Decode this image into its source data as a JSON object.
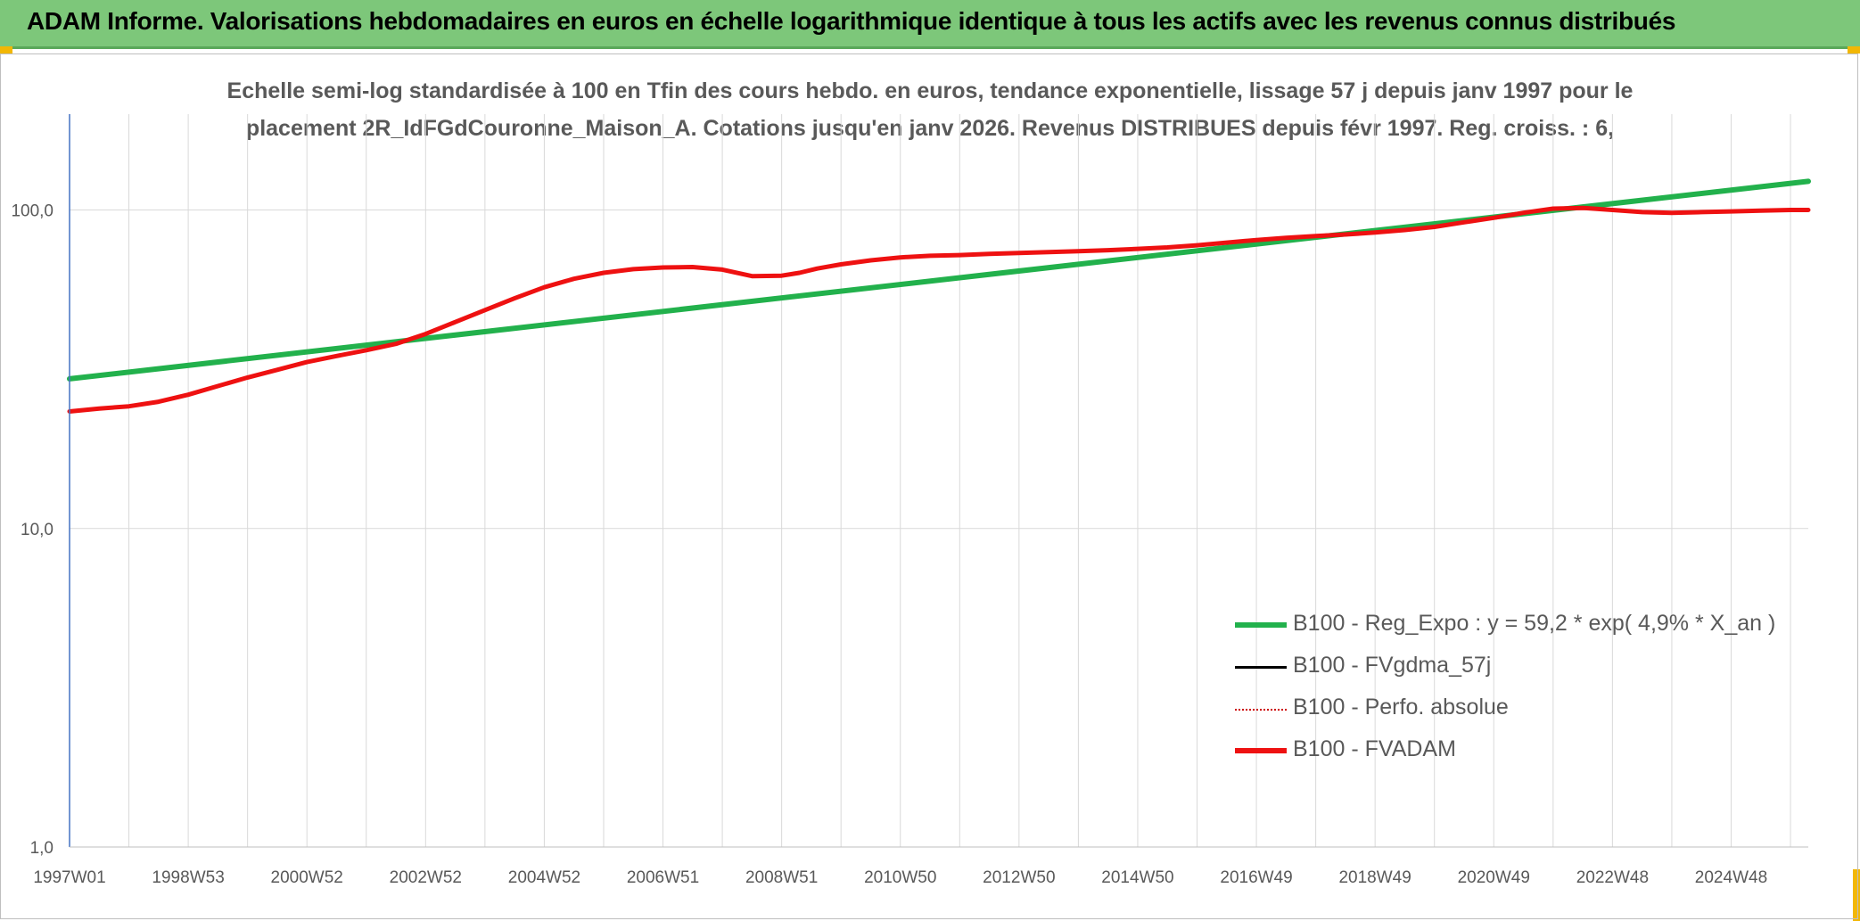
{
  "header": {
    "title": "ADAM Informe. Valorisations hebdomadaires en euros en échelle logarithmique identique à tous les actifs avec les revenus connus distribués"
  },
  "subtitle": {
    "line1": "Echelle semi-log standardisée à 100 en Tfin des cours hebdo. en euros, tendance exponentielle, lissage 57 j depuis janv 1997 pour le",
    "line2": "placement 2R_IdFGdCouronne_Maison_A. Cotations jusqu'en janv 2026. Revenus DISTRIBUES depuis févr 1997. Reg. croiss. : 6,"
  },
  "colors": {
    "header_bg": "#7dc77a",
    "corner_accent": "#f2b705",
    "regression": "#22b14c",
    "fvadam": "#ee1111",
    "fvgdma": "#000000",
    "perfo": "#cc0000",
    "grid": "#d9d9d9",
    "axis": "#4472c4"
  },
  "legend": [
    {
      "label": "B100 - Reg_Expo : y = 59,2 * exp( 4,9% *  X_an )",
      "color": "#22b14c",
      "style": "solid-thick"
    },
    {
      "label": "B100 - FVgdma_57j",
      "color": "#000000",
      "style": "solid"
    },
    {
      "label": "B100 - Perfo. absolue",
      "color": "#cc0000",
      "style": "dotted"
    },
    {
      "label": "B100 - FVADAM",
      "color": "#ee1111",
      "style": "solid-thick"
    }
  ],
  "chart_data": {
    "type": "line",
    "yscale": "log",
    "ylim": [
      1,
      200
    ],
    "yticks": [
      {
        "value": 1,
        "label": "1,0"
      },
      {
        "value": 10,
        "label": "10,0"
      },
      {
        "value": 100,
        "label": "100,0"
      }
    ],
    "xlim": [
      1997.0,
      2026.3
    ],
    "xticks": [
      {
        "x": 1997.0,
        "label": "1997W01"
      },
      {
        "x": 1999.0,
        "label": "1998W53"
      },
      {
        "x": 2001.0,
        "label": "2000W52"
      },
      {
        "x": 2003.0,
        "label": "2002W52"
      },
      {
        "x": 2005.0,
        "label": "2004W52"
      },
      {
        "x": 2007.0,
        "label": "2006W51"
      },
      {
        "x": 2009.0,
        "label": "2008W51"
      },
      {
        "x": 2011.0,
        "label": "2010W50"
      },
      {
        "x": 2013.0,
        "label": "2012W50"
      },
      {
        "x": 2015.0,
        "label": "2014W50"
      },
      {
        "x": 2017.0,
        "label": "2016W49"
      },
      {
        "x": 2019.0,
        "label": "2018W49"
      },
      {
        "x": 2021.0,
        "label": "2020W49"
      },
      {
        "x": 2023.0,
        "label": "2022W48"
      },
      {
        "x": 2025.0,
        "label": "2024W48"
      }
    ],
    "xgrid_minor": [
      1998.0,
      2000.0,
      2002.0,
      2004.0,
      2006.0,
      2008.0,
      2010.0,
      2012.0,
      2014.0,
      2016.0,
      2018.0,
      2020.0,
      2022.0,
      2024.0,
      2026.0
    ],
    "series": [
      {
        "name": "B100 - Reg_Expo : y = 59,2 * exp( 4,9% *  X_an )",
        "x": [
          1997.0,
          2026.3
        ],
        "y": [
          29.5,
          123.0
        ]
      },
      {
        "name": "B100 - FVADAM",
        "x": [
          1997.0,
          1997.5,
          1998.0,
          1998.5,
          1999.0,
          1999.5,
          2000.0,
          2000.5,
          2001.0,
          2001.5,
          2002.0,
          2002.5,
          2003.0,
          2003.5,
          2004.0,
          2004.5,
          2005.0,
          2005.5,
          2006.0,
          2006.5,
          2007.0,
          2007.5,
          2008.0,
          2008.5,
          2009.0,
          2009.3,
          2009.6,
          2010.0,
          2010.5,
          2011.0,
          2011.5,
          2012.0,
          2012.5,
          2013.0,
          2013.5,
          2014.0,
          2014.5,
          2015.0,
          2015.5,
          2016.0,
          2016.5,
          2017.0,
          2017.5,
          2018.0,
          2018.5,
          2019.0,
          2019.5,
          2020.0,
          2020.5,
          2021.0,
          2021.5,
          2022.0,
          2022.5,
          2023.0,
          2023.5,
          2024.0,
          2024.5,
          2025.0,
          2025.5,
          2026.0,
          2026.3
        ],
        "y": [
          23.3,
          23.8,
          24.2,
          25.0,
          26.3,
          28.0,
          29.8,
          31.5,
          33.3,
          34.8,
          36.3,
          38.0,
          40.8,
          44.5,
          48.5,
          52.8,
          57.2,
          60.8,
          63.5,
          65.2,
          66.0,
          66.2,
          65.0,
          62.0,
          62.2,
          63.5,
          65.5,
          67.5,
          69.5,
          71.0,
          71.8,
          72.2,
          72.8,
          73.3,
          73.8,
          74.2,
          74.8,
          75.5,
          76.3,
          77.5,
          79.0,
          80.5,
          81.8,
          82.8,
          83.8,
          85.0,
          86.5,
          88.5,
          91.5,
          94.5,
          98.0,
          101.0,
          101.5,
          100.0,
          98.5,
          98.0,
          98.5,
          99.0,
          99.5,
          100.0,
          100.0
        ]
      }
    ]
  }
}
